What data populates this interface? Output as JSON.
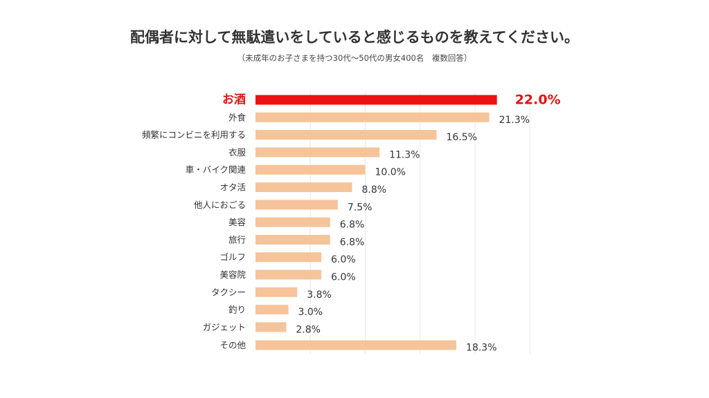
{
  "header": {
    "title": "配偶者に対して無駄遣いをしていると感じるものを教えてください。",
    "subtitle": "（未成年のお子さまを持つ30代〜50代の男女400名　複数回答）"
  },
  "chart_data": {
    "type": "bar",
    "orientation": "horizontal",
    "categories": [
      "お酒",
      "外食",
      "頻繁にコンビニを利用する",
      "衣服",
      "車・バイク関連",
      "オタ活",
      "他人におごる",
      "美容",
      "旅行",
      "ゴルフ",
      "美容院",
      "タクシー",
      "釣り",
      "ガジェット",
      "その他"
    ],
    "values": [
      22.0,
      21.3,
      16.5,
      11.3,
      10.0,
      8.8,
      7.5,
      6.8,
      6.8,
      6.0,
      6.0,
      3.8,
      3.0,
      2.8,
      18.3
    ],
    "value_labels": [
      "22.0%",
      "21.3%",
      "16.5%",
      "11.3%",
      "10.0%",
      "8.8%",
      "7.5%",
      "6.8%",
      "6.8%",
      "6.0%",
      "6.0%",
      "3.8%",
      "3.0%",
      "2.8%",
      "18.3%"
    ],
    "highlight_index": 0,
    "xlim": [
      0,
      25
    ],
    "grid": true,
    "legend": "none",
    "colors": {
      "highlight": "#ee1111",
      "bar": "#f5c49a",
      "highlight_text": "#e41010",
      "text": "#333333",
      "grid": "#e8e8e8"
    }
  }
}
